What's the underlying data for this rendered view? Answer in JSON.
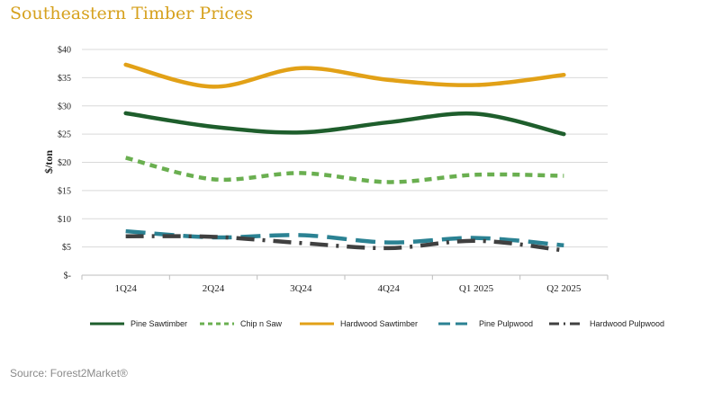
{
  "source_text": "Source: Forest2Market®",
  "chart_data": {
    "type": "line",
    "title": "Southeastern Timber Prices",
    "xlabel": "",
    "ylabel": "$/ton",
    "categories": [
      "1Q24",
      "2Q24",
      "3Q24",
      "4Q24",
      "Q1 2025",
      "Q2 2025"
    ],
    "ylim": [
      0,
      40
    ],
    "yticks": [
      0,
      5,
      10,
      15,
      20,
      25,
      30,
      35,
      40
    ],
    "ytick_labels": [
      "$-",
      "$5",
      "$10",
      "$15",
      "$20",
      "$25",
      "$30",
      "$35",
      "$40"
    ],
    "grid": true,
    "legend_position": "bottom",
    "series": [
      {
        "name": "Pine Sawtimber",
        "values": [
          28.7,
          26.3,
          25.3,
          27.1,
          28.6,
          25.0
        ],
        "color": "#1e5e2c",
        "style": "solid"
      },
      {
        "name": "Chip n Saw",
        "values": [
          20.8,
          17.0,
          18.1,
          16.5,
          17.8,
          17.6
        ],
        "color": "#6aaf50",
        "style": "dash"
      },
      {
        "name": "Hardwood Sawtimber",
        "values": [
          37.3,
          33.4,
          36.7,
          34.6,
          33.7,
          35.5
        ],
        "color": "#e2a117",
        "style": "solid"
      },
      {
        "name": "Pine Pulpwood",
        "values": [
          7.8,
          6.7,
          7.1,
          5.8,
          6.6,
          5.3
        ],
        "color": "#2b8293",
        "style": "longdash"
      },
      {
        "name": "Hardwood Pulpwood",
        "values": [
          6.9,
          6.8,
          5.7,
          4.8,
          6.1,
          4.4
        ],
        "color": "#404040",
        "style": "dashdot"
      }
    ]
  }
}
